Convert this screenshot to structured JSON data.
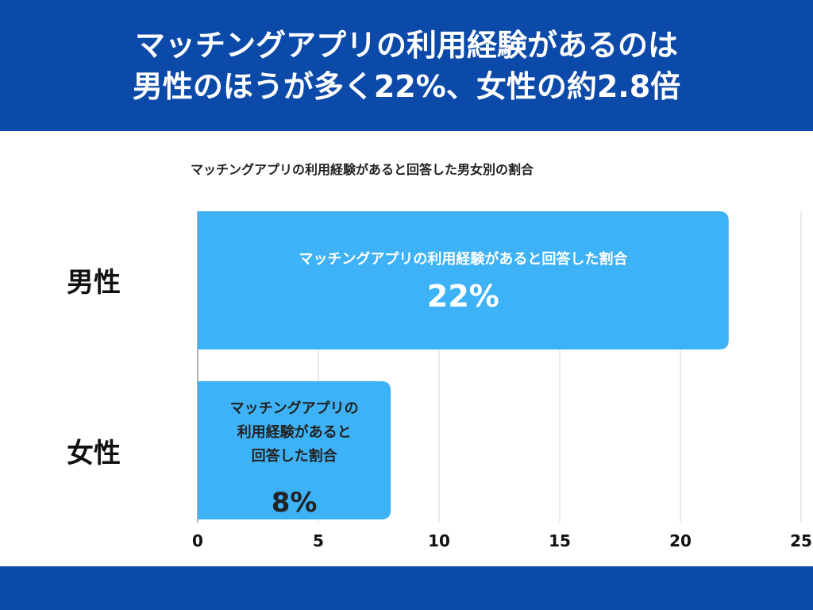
{
  "header": {
    "title_line1": "マッチングアプリの利用経験があるのは",
    "title_line2": "男性のほうが多く22%、女性の約2.8倍"
  },
  "chart_data": {
    "type": "bar",
    "orientation": "horizontal",
    "title": "マッチングアプリの利用経験があると回答した男女別の割合",
    "categories": [
      "男性",
      "女性"
    ],
    "values": [
      22,
      8
    ],
    "value_labels": [
      "22%",
      "8%"
    ],
    "bar_labels": [
      [
        "マッチングアプリの利用経験があると回答した割合"
      ],
      [
        "マッチングアプリの",
        "利用経験があると",
        "回答した割合"
      ]
    ],
    "xlim": [
      0,
      25
    ],
    "xticks": [
      "0",
      "5",
      "10",
      "15",
      "20",
      "25"
    ],
    "grid": true,
    "colors": {
      "bar": "#3eb2f7",
      "grid": "#d5d5d5",
      "header": "#0b4aa8"
    }
  }
}
